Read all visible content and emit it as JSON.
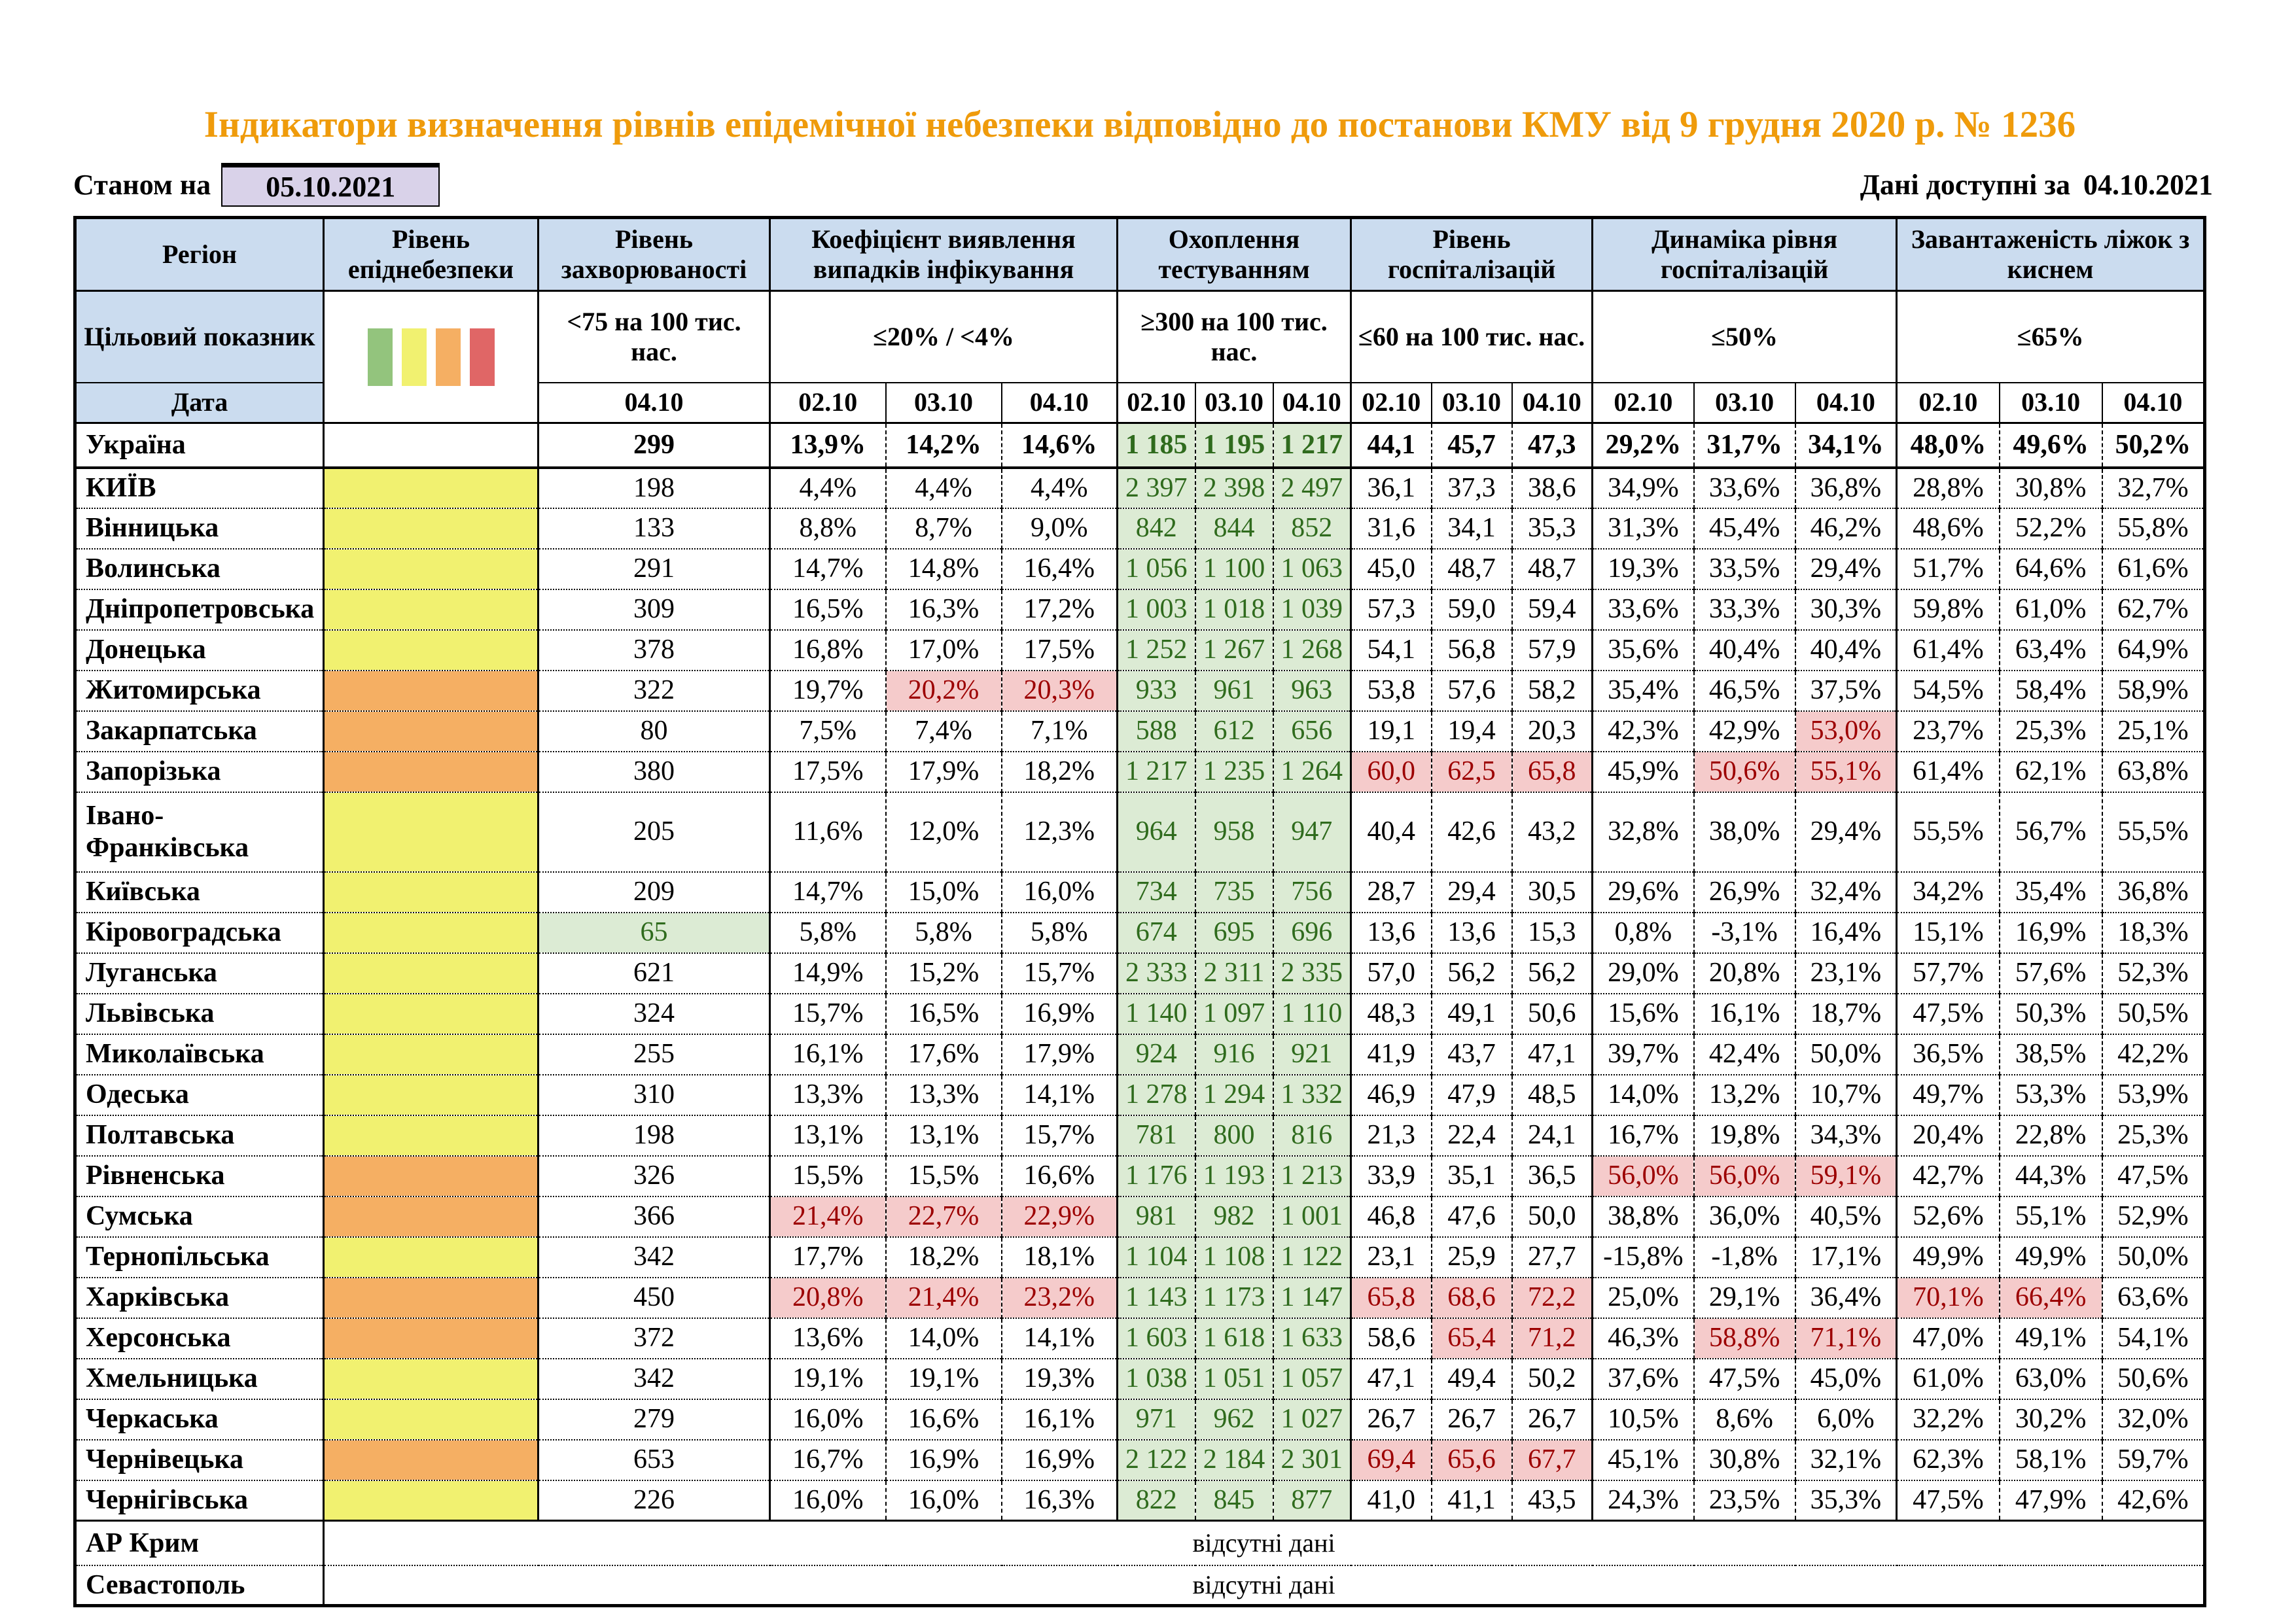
{
  "page": {
    "title": "Індикатори визначення рівнів епідемічної небезпеки відповідно до постанови КМУ від 9 грудня 2020 р. № 1236",
    "as_of_label": "Станом на",
    "as_of_date": "05.10.2021",
    "data_available_label": "Дані доступні за",
    "data_available_date": "04.10.2021"
  },
  "colors": {
    "title": "#EF9B0B",
    "header_bg": "#CBDCEF",
    "date_box_bg": "#D9D2E9",
    "level_yellow": "#F1F170",
    "level_orange": "#F5AF63",
    "bar_green": "#93C47D",
    "bar_yellow": "#F1F170",
    "bar_orange": "#F5AF63",
    "bar_red": "#E06666",
    "test_bg": "#DCEBD4",
    "test_text": "#2F6B1D",
    "red_bg": "#F5CBCB",
    "red_text": "#9C0000"
  },
  "table": {
    "columns": [
      {
        "label": "Регіон",
        "target_label": "Цільовий показник",
        "date_label": "Дата"
      },
      {
        "label": "Рівень епіднебезпеки"
      },
      {
        "label": "Рівень захворюваності",
        "target": "<75 на 100 тис. нас.",
        "dates": [
          "04.10"
        ]
      },
      {
        "label": "Коефіцієнт виявлення випадків інфікування",
        "target": "≤20% / <4%",
        "dates": [
          "02.10",
          "03.10",
          "04.10"
        ]
      },
      {
        "label": "Охоплення тестуванням",
        "target": "≥300 на 100 тис. нас.",
        "dates": [
          "02.10",
          "03.10",
          "04.10"
        ]
      },
      {
        "label": "Рівень госпіталізацій",
        "target": "≤60 на 100 тис. нас.",
        "dates": [
          "02.10",
          "03.10",
          "04.10"
        ]
      },
      {
        "label": "Динаміка рівня госпіталізацій",
        "target": "≤50%",
        "dates": [
          "02.10",
          "03.10",
          "04.10"
        ]
      },
      {
        "label": "Завантаженість ліжок з киснем",
        "target": "≤65%",
        "dates": [
          "02.10",
          "03.10",
          "04.10"
        ]
      }
    ],
    "no_data_text": "відсутні дані",
    "rows": [
      {
        "region": "Україна",
        "level": null,
        "bold": true,
        "ukraine": true,
        "m": "299",
        "d": [
          "13,9%",
          "14,2%",
          "14,6%"
        ],
        "t": [
          "1 185",
          "1 195",
          "1 217"
        ],
        "h": [
          "44,1",
          "45,7",
          "47,3"
        ],
        "dy": [
          "29,2%",
          "31,7%",
          "34,1%"
        ],
        "b": [
          "48,0%",
          "49,6%",
          "50,2%"
        ]
      },
      {
        "region": "КИЇВ",
        "level": "yellow",
        "m": "198",
        "d": [
          "4,4%",
          "4,4%",
          "4,4%"
        ],
        "t": [
          "2 397",
          "2 398",
          "2 497"
        ],
        "h": [
          "36,1",
          "37,3",
          "38,6"
        ],
        "dy": [
          "34,9%",
          "33,6%",
          "36,8%"
        ],
        "b": [
          "28,8%",
          "30,8%",
          "32,7%"
        ]
      },
      {
        "region": "Вінницька",
        "level": "yellow",
        "m": "133",
        "d": [
          "8,8%",
          "8,7%",
          "9,0%"
        ],
        "t": [
          "842",
          "844",
          "852"
        ],
        "h": [
          "31,6",
          "34,1",
          "35,3"
        ],
        "dy": [
          "31,3%",
          "45,4%",
          "46,2%"
        ],
        "b": [
          "48,6%",
          "52,2%",
          "55,8%"
        ]
      },
      {
        "region": "Волинська",
        "level": "yellow",
        "m": "291",
        "d": [
          "14,7%",
          "14,8%",
          "16,4%"
        ],
        "t": [
          "1 056",
          "1 100",
          "1 063"
        ],
        "h": [
          "45,0",
          "48,7",
          "48,7"
        ],
        "dy": [
          "19,3%",
          "33,5%",
          "29,4%"
        ],
        "b": [
          "51,7%",
          "64,6%",
          "61,6%"
        ]
      },
      {
        "region": "Дніпропетровська",
        "level": "yellow",
        "m": "309",
        "d": [
          "16,5%",
          "16,3%",
          "17,2%"
        ],
        "t": [
          "1 003",
          "1 018",
          "1 039"
        ],
        "h": [
          "57,3",
          "59,0",
          "59,4"
        ],
        "dy": [
          "33,6%",
          "33,3%",
          "30,3%"
        ],
        "b": [
          "59,8%",
          "61,0%",
          "62,7%"
        ]
      },
      {
        "region": "Донецька",
        "level": "yellow",
        "m": "378",
        "d": [
          "16,8%",
          "17,0%",
          "17,5%"
        ],
        "t": [
          "1 252",
          "1 267",
          "1 268"
        ],
        "h": [
          "54,1",
          "56,8",
          "57,9"
        ],
        "dy": [
          "35,6%",
          "40,4%",
          "40,4%"
        ],
        "b": [
          "61,4%",
          "63,4%",
          "64,9%"
        ]
      },
      {
        "region": "Житомирська",
        "level": "orange",
        "m": "322",
        "d": [
          "19,7%",
          "20,2%",
          "20,3%"
        ],
        "red": {
          "d": [
            1,
            2
          ]
        },
        "t": [
          "933",
          "961",
          "963"
        ],
        "h": [
          "53,8",
          "57,6",
          "58,2"
        ],
        "dy": [
          "35,4%",
          "46,5%",
          "37,5%"
        ],
        "b": [
          "54,5%",
          "58,4%",
          "58,9%"
        ]
      },
      {
        "region": "Закарпатська",
        "level": "orange",
        "m": "80",
        "d": [
          "7,5%",
          "7,4%",
          "7,1%"
        ],
        "t": [
          "588",
          "612",
          "656"
        ],
        "h": [
          "19,1",
          "19,4",
          "20,3"
        ],
        "dy": [
          "42,3%",
          "42,9%",
          "53,0%"
        ],
        "red": {
          "dy": [
            2
          ]
        },
        "b": [
          "23,7%",
          "25,3%",
          "25,1%"
        ]
      },
      {
        "region": "Запорізька",
        "level": "orange",
        "m": "380",
        "d": [
          "17,5%",
          "17,9%",
          "18,2%"
        ],
        "t": [
          "1 217",
          "1 235",
          "1 264"
        ],
        "h": [
          "60,0",
          "62,5",
          "65,8"
        ],
        "dy": [
          "45,9%",
          "50,6%",
          "55,1%"
        ],
        "red": {
          "h": [
            0,
            1,
            2
          ],
          "dy": [
            1,
            2
          ]
        },
        "b": [
          "61,4%",
          "62,1%",
          "63,8%"
        ]
      },
      {
        "region": "Івано-\nФранківська",
        "level": "yellow",
        "tall": true,
        "m": "205",
        "d": [
          "11,6%",
          "12,0%",
          "12,3%"
        ],
        "t": [
          "964",
          "958",
          "947"
        ],
        "h": [
          "40,4",
          "42,6",
          "43,2"
        ],
        "dy": [
          "32,8%",
          "38,0%",
          "29,4%"
        ],
        "b": [
          "55,5%",
          "56,7%",
          "55,5%"
        ]
      },
      {
        "region": "Київська",
        "level": "yellow",
        "m": "209",
        "d": [
          "14,7%",
          "15,0%",
          "16,0%"
        ],
        "t": [
          "734",
          "735",
          "756"
        ],
        "h": [
          "28,7",
          "29,4",
          "30,5"
        ],
        "dy": [
          "29,6%",
          "26,9%",
          "32,4%"
        ],
        "b": [
          "34,2%",
          "35,4%",
          "36,8%"
        ]
      },
      {
        "region": "Кіровоградська",
        "level": "yellow",
        "m": "65",
        "green_m": true,
        "d": [
          "5,8%",
          "5,8%",
          "5,8%"
        ],
        "t": [
          "674",
          "695",
          "696"
        ],
        "h": [
          "13,6",
          "13,6",
          "15,3"
        ],
        "dy": [
          "0,8%",
          "-3,1%",
          "16,4%"
        ],
        "b": [
          "15,1%",
          "16,9%",
          "18,3%"
        ]
      },
      {
        "region": "Луганська",
        "level": "yellow",
        "m": "621",
        "d": [
          "14,9%",
          "15,2%",
          "15,7%"
        ],
        "t": [
          "2 333",
          "2 311",
          "2 335"
        ],
        "h": [
          "57,0",
          "56,2",
          "56,2"
        ],
        "dy": [
          "29,0%",
          "20,8%",
          "23,1%"
        ],
        "b": [
          "57,7%",
          "57,6%",
          "52,3%"
        ]
      },
      {
        "region": "Львівська",
        "level": "yellow",
        "m": "324",
        "d": [
          "15,7%",
          "16,5%",
          "16,9%"
        ],
        "t": [
          "1 140",
          "1 097",
          "1 110"
        ],
        "h": [
          "48,3",
          "49,1",
          "50,6"
        ],
        "dy": [
          "15,6%",
          "16,1%",
          "18,7%"
        ],
        "b": [
          "47,5%",
          "50,3%",
          "50,5%"
        ]
      },
      {
        "region": "Миколаївська",
        "level": "yellow",
        "m": "255",
        "d": [
          "16,1%",
          "17,6%",
          "17,9%"
        ],
        "t": [
          "924",
          "916",
          "921"
        ],
        "h": [
          "41,9",
          "43,7",
          "47,1"
        ],
        "dy": [
          "39,7%",
          "42,4%",
          "50,0%"
        ],
        "b": [
          "36,5%",
          "38,5%",
          "42,2%"
        ]
      },
      {
        "region": "Одеська",
        "level": "yellow",
        "m": "310",
        "d": [
          "13,3%",
          "13,3%",
          "14,1%"
        ],
        "t": [
          "1 278",
          "1 294",
          "1 332"
        ],
        "h": [
          "46,9",
          "47,9",
          "48,5"
        ],
        "dy": [
          "14,0%",
          "13,2%",
          "10,7%"
        ],
        "b": [
          "49,7%",
          "53,3%",
          "53,9%"
        ]
      },
      {
        "region": "Полтавська",
        "level": "yellow",
        "m": "198",
        "d": [
          "13,1%",
          "13,1%",
          "15,7%"
        ],
        "t": [
          "781",
          "800",
          "816"
        ],
        "h": [
          "21,3",
          "22,4",
          "24,1"
        ],
        "dy": [
          "16,7%",
          "19,8%",
          "34,3%"
        ],
        "b": [
          "20,4%",
          "22,8%",
          "25,3%"
        ]
      },
      {
        "region": "Рівненська",
        "level": "orange",
        "m": "326",
        "d": [
          "15,5%",
          "15,5%",
          "16,6%"
        ],
        "t": [
          "1 176",
          "1 193",
          "1 213"
        ],
        "h": [
          "33,9",
          "35,1",
          "36,5"
        ],
        "dy": [
          "56,0%",
          "56,0%",
          "59,1%"
        ],
        "red": {
          "dy": [
            0,
            1,
            2
          ]
        },
        "b": [
          "42,7%",
          "44,3%",
          "47,5%"
        ]
      },
      {
        "region": "Сумська",
        "level": "orange",
        "m": "366",
        "d": [
          "21,4%",
          "22,7%",
          "22,9%"
        ],
        "red": {
          "d": [
            0,
            1,
            2
          ]
        },
        "t": [
          "981",
          "982",
          "1 001"
        ],
        "h": [
          "46,8",
          "47,6",
          "50,0"
        ],
        "dy": [
          "38,8%",
          "36,0%",
          "40,5%"
        ],
        "b": [
          "52,6%",
          "55,1%",
          "52,9%"
        ]
      },
      {
        "region": "Тернопільська",
        "level": "yellow",
        "m": "342",
        "d": [
          "17,7%",
          "18,2%",
          "18,1%"
        ],
        "t": [
          "1 104",
          "1 108",
          "1 122"
        ],
        "h": [
          "23,1",
          "25,9",
          "27,7"
        ],
        "dy": [
          "-15,8%",
          "-1,8%",
          "17,1%"
        ],
        "b": [
          "49,9%",
          "49,9%",
          "50,0%"
        ]
      },
      {
        "region": "Харківська",
        "level": "orange",
        "m": "450",
        "d": [
          "20,8%",
          "21,4%",
          "23,2%"
        ],
        "t": [
          "1 143",
          "1 173",
          "1 147"
        ],
        "h": [
          "65,8",
          "68,6",
          "72,2"
        ],
        "dy": [
          "25,0%",
          "29,1%",
          "36,4%"
        ],
        "b": [
          "70,1%",
          "66,4%",
          "63,6%"
        ],
        "red": {
          "d": [
            0,
            1,
            2
          ],
          "h": [
            0,
            1,
            2
          ],
          "b": [
            0,
            1
          ]
        }
      },
      {
        "region": "Херсонська",
        "level": "orange",
        "m": "372",
        "d": [
          "13,6%",
          "14,0%",
          "14,1%"
        ],
        "t": [
          "1 603",
          "1 618",
          "1 633"
        ],
        "h": [
          "58,6",
          "65,4",
          "71,2"
        ],
        "dy": [
          "46,3%",
          "58,8%",
          "71,1%"
        ],
        "red": {
          "h": [
            1,
            2
          ],
          "dy": [
            1,
            2
          ]
        },
        "b": [
          "47,0%",
          "49,1%",
          "54,1%"
        ]
      },
      {
        "region": "Хмельницька",
        "level": "yellow",
        "m": "342",
        "d": [
          "19,1%",
          "19,1%",
          "19,3%"
        ],
        "t": [
          "1 038",
          "1 051",
          "1 057"
        ],
        "h": [
          "47,1",
          "49,4",
          "50,2"
        ],
        "dy": [
          "37,6%",
          "47,5%",
          "45,0%"
        ],
        "b": [
          "61,0%",
          "63,0%",
          "50,6%"
        ]
      },
      {
        "region": "Черкаська",
        "level": "yellow",
        "m": "279",
        "d": [
          "16,0%",
          "16,6%",
          "16,1%"
        ],
        "t": [
          "971",
          "962",
          "1 027"
        ],
        "h": [
          "26,7",
          "26,7",
          "26,7"
        ],
        "dy": [
          "10,5%",
          "8,6%",
          "6,0%"
        ],
        "b": [
          "32,2%",
          "30,2%",
          "32,0%"
        ]
      },
      {
        "region": "Чернівецька",
        "level": "orange",
        "m": "653",
        "d": [
          "16,7%",
          "16,9%",
          "16,9%"
        ],
        "t": [
          "2 122",
          "2 184",
          "2 301"
        ],
        "h": [
          "69,4",
          "65,6",
          "67,7"
        ],
        "red": {
          "h": [
            0,
            1,
            2
          ]
        },
        "dy": [
          "45,1%",
          "30,8%",
          "32,1%"
        ],
        "b": [
          "62,3%",
          "58,1%",
          "59,7%"
        ]
      },
      {
        "region": "Чернігівська",
        "level": "yellow",
        "m": "226",
        "d": [
          "16,0%",
          "16,0%",
          "16,3%"
        ],
        "t": [
          "822",
          "845",
          "877"
        ],
        "h": [
          "41,0",
          "41,1",
          "43,5"
        ],
        "dy": [
          "24,3%",
          "23,5%",
          "35,3%"
        ],
        "b": [
          "47,5%",
          "47,9%",
          "42,6%"
        ]
      },
      {
        "region": "АР Крим",
        "no_data": true,
        "thick_top": true
      },
      {
        "region": "Севастополь",
        "no_data": true
      }
    ]
  }
}
